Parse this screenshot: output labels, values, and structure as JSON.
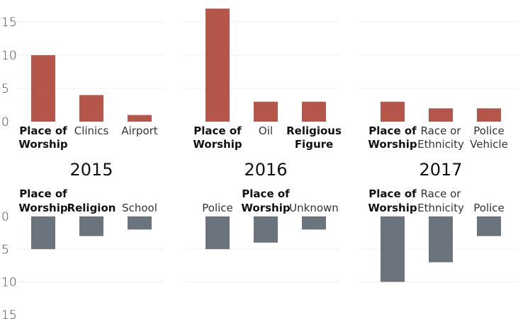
{
  "chart_data": {
    "type": "bar",
    "colors": {
      "top": "#b5564b",
      "bottom": "#6b747d"
    },
    "top_axis": {
      "ylim": [
        0,
        15
      ],
      "ticks": [
        "0",
        "5",
        "10",
        "15"
      ]
    },
    "bottom_axis": {
      "ylim": [
        0,
        15
      ],
      "ticks": [
        "0",
        "5",
        "10",
        "15"
      ]
    },
    "years": [
      {
        "label": "2015",
        "top": [
          {
            "label": [
              "Place of",
              "Worship"
            ],
            "value": 10,
            "bold": true
          },
          {
            "label": [
              "Clinics"
            ],
            "value": 4,
            "bold": false
          },
          {
            "label": [
              "Airport"
            ],
            "value": 1,
            "bold": false
          }
        ],
        "bottom": [
          {
            "label": [
              "Place of",
              "Worship"
            ],
            "value": 5,
            "bold": true
          },
          {
            "label": [
              "Religion"
            ],
            "value": 3,
            "bold": true
          },
          {
            "label": [
              "School"
            ],
            "value": 2,
            "bold": false
          }
        ]
      },
      {
        "label": "2016",
        "top": [
          {
            "label": [
              "Place of",
              "Worship"
            ],
            "value": 17,
            "bold": true
          },
          {
            "label": [
              "Oil"
            ],
            "value": 3,
            "bold": false
          },
          {
            "label": [
              "Religious",
              "Figure"
            ],
            "value": 3,
            "bold": true
          }
        ],
        "bottom": [
          {
            "label": [
              "Police"
            ],
            "value": 5,
            "bold": false
          },
          {
            "label": [
              "Place of",
              "Worship"
            ],
            "value": 4,
            "bold": true
          },
          {
            "label": [
              "Unknown"
            ],
            "value": 2,
            "bold": false
          }
        ]
      },
      {
        "label": "2017",
        "top": [
          {
            "label": [
              "Place of",
              "Worship"
            ],
            "value": 3,
            "bold": true
          },
          {
            "label": [
              "Race or",
              "Ethnicity"
            ],
            "value": 2,
            "bold": false
          },
          {
            "label": [
              "Police",
              "Vehicle"
            ],
            "value": 2,
            "bold": false
          }
        ],
        "bottom": [
          {
            "label": [
              "Place of",
              "Worship"
            ],
            "value": 10,
            "bold": true
          },
          {
            "label": [
              "Race or",
              "Ethnicity"
            ],
            "value": 7,
            "bold": false
          },
          {
            "label": [
              "Police"
            ],
            "value": 3,
            "bold": false
          }
        ]
      }
    ]
  }
}
